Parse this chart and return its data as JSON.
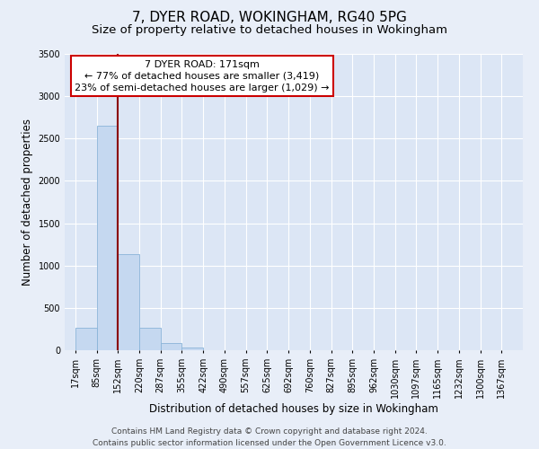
{
  "title": "7, DYER ROAD, WOKINGHAM, RG40 5PG",
  "subtitle": "Size of property relative to detached houses in Wokingham",
  "xlabel": "Distribution of detached houses by size in Wokingham",
  "ylabel": "Number of detached properties",
  "bar_labels": [
    "17sqm",
    "85sqm",
    "152sqm",
    "220sqm",
    "287sqm",
    "355sqm",
    "422sqm",
    "490sqm",
    "557sqm",
    "625sqm",
    "692sqm",
    "760sqm",
    "827sqm",
    "895sqm",
    "962sqm",
    "1030sqm",
    "1097sqm",
    "1165sqm",
    "1232sqm",
    "1300sqm",
    "1367sqm"
  ],
  "bar_values": [
    270,
    2650,
    1140,
    270,
    80,
    30,
    0,
    0,
    0,
    0,
    0,
    0,
    0,
    0,
    0,
    0,
    0,
    0,
    0,
    0,
    0
  ],
  "bar_color": "#c5d8f0",
  "bar_edge_color": "#8ab4d8",
  "ylim": [
    0,
    3500
  ],
  "yticks": [
    0,
    500,
    1000,
    1500,
    2000,
    2500,
    3000,
    3500
  ],
  "vline_color": "#8b0000",
  "annotation_title": "7 DYER ROAD: 171sqm",
  "annotation_line1": "← 77% of detached houses are smaller (3,419)",
  "annotation_line2": "23% of semi-detached houses are larger (1,029) →",
  "annotation_box_color": "#ffffff",
  "annotation_box_edge": "#cc0000",
  "footer1": "Contains HM Land Registry data © Crown copyright and database right 2024.",
  "footer2": "Contains public sector information licensed under the Open Government Licence v3.0.",
  "background_color": "#e8eef8",
  "plot_bg_color": "#dce6f5",
  "grid_color": "#ffffff",
  "title_fontsize": 11,
  "subtitle_fontsize": 9.5,
  "axis_label_fontsize": 8.5,
  "tick_fontsize": 7,
  "footer_fontsize": 6.5,
  "annot_fontsize": 8
}
